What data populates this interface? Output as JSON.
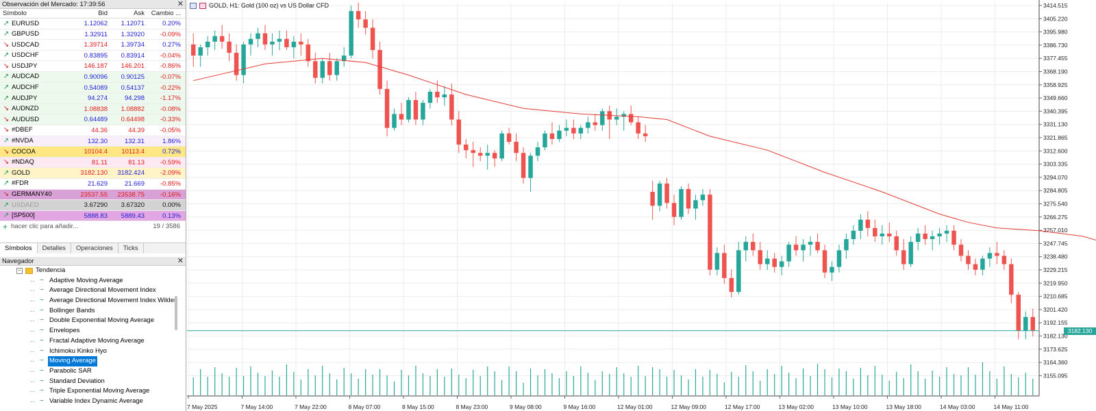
{
  "market_watch": {
    "title": "Observación del Mercado: 17:39:56",
    "columns": {
      "symbol": "Símbolo",
      "bid": "Bid",
      "ask": "Ask",
      "change": "Cambio ..."
    },
    "rows": [
      {
        "symbol": "EURUSD",
        "dir": "up",
        "bid": "1.12062",
        "ask": "1.12071",
        "change": "0.20%",
        "bid_color": "blue",
        "ask_color": "blue",
        "change_color": "blue",
        "bg": "#ffffff"
      },
      {
        "symbol": "GBPUSD",
        "dir": "up",
        "bid": "1.32911",
        "ask": "1.32920",
        "change": "-0.09%",
        "bid_color": "blue",
        "ask_color": "blue",
        "change_color": "red",
        "bg": "#ffffff"
      },
      {
        "symbol": "USDCAD",
        "dir": "down",
        "bid": "1.39714",
        "ask": "1.39734",
        "change": "0.27%",
        "bid_color": "red",
        "ask_color": "blue",
        "change_color": "blue",
        "bg": "#ffffff"
      },
      {
        "symbol": "USDCHF",
        "dir": "up",
        "bid": "0.83895",
        "ask": "0.83914",
        "change": "-0.04%",
        "bid_color": "blue",
        "ask_color": "blue",
        "change_color": "red",
        "bg": "#ffffff"
      },
      {
        "symbol": "USDJPY",
        "dir": "down",
        "bid": "146.187",
        "ask": "146.201",
        "change": "-0.86%",
        "bid_color": "red",
        "ask_color": "red",
        "change_color": "red",
        "bg": "#ffffff"
      },
      {
        "symbol": "AUDCAD",
        "dir": "up",
        "bid": "0.90096",
        "ask": "0.90125",
        "change": "-0.07%",
        "bid_color": "blue",
        "ask_color": "blue",
        "change_color": "red",
        "bg": "#eef9ee"
      },
      {
        "symbol": "AUDCHF",
        "dir": "up",
        "bid": "0.54089",
        "ask": "0.54137",
        "change": "-0.22%",
        "bid_color": "blue",
        "ask_color": "blue",
        "change_color": "red",
        "bg": "#eef9ee"
      },
      {
        "symbol": "AUDJPY",
        "dir": "up",
        "bid": "94.274",
        "ask": "94.298",
        "change": "-1.17%",
        "bid_color": "blue",
        "ask_color": "blue",
        "change_color": "red",
        "bg": "#eef9ee"
      },
      {
        "symbol": "AUDNZD",
        "dir": "down",
        "bid": "1.08838",
        "ask": "1.08882",
        "change": "-0.08%",
        "bid_color": "red",
        "ask_color": "red",
        "change_color": "red",
        "bg": "#eef9ee"
      },
      {
        "symbol": "AUDUSD",
        "dir": "down",
        "bid": "0.64489",
        "ask": "0.64498",
        "change": "-0.33%",
        "bid_color": "blue",
        "ask_color": "red",
        "change_color": "red",
        "bg": "#eef9ee"
      },
      {
        "symbol": "#DBEF",
        "dir": "down",
        "bid": "44.36",
        "ask": "44.39",
        "change": "-0.05%",
        "bid_color": "red",
        "ask_color": "red",
        "change_color": "red",
        "bg": "#ffffff"
      },
      {
        "symbol": "#NVDA",
        "dir": "up",
        "bid": "132.30",
        "ask": "132.31",
        "change": "1.86%",
        "bid_color": "blue",
        "ask_color": "blue",
        "change_color": "blue",
        "bg": "#f9effa"
      },
      {
        "symbol": "COCOA",
        "dir": "down",
        "bid": "10104.4",
        "ask": "10113.4",
        "change": "0.72%",
        "bid_color": "red",
        "ask_color": "red",
        "change_color": "blue",
        "bg": "#ffe884"
      },
      {
        "symbol": "#NDAQ",
        "dir": "down",
        "bid": "81.11",
        "ask": "81.13",
        "change": "-0.59%",
        "bid_color": "red",
        "ask_color": "red",
        "change_color": "red",
        "bg": "#fde9f2"
      },
      {
        "symbol": "GOLD",
        "dir": "up",
        "bid": "3182.130",
        "ask": "3182.424",
        "change": "-2.09%",
        "bid_color": "red",
        "ask_color": "blue",
        "change_color": "red",
        "bg": "#fff4c7"
      },
      {
        "symbol": "#FDR",
        "dir": "up",
        "bid": "21.629",
        "ask": "21.669",
        "change": "-0.85%",
        "bid_color": "blue",
        "ask_color": "blue",
        "change_color": "red",
        "bg": "#ffffff"
      },
      {
        "symbol": "GERMANY40",
        "dir": "down",
        "bid": "23537.55",
        "ask": "23538.75",
        "change": "-0.16%",
        "bid_color": "red",
        "ask_color": "red",
        "change_color": "red",
        "bg": "#d9a2d6"
      },
      {
        "symbol": "USDAED",
        "dir": "up",
        "bid": "3.67290",
        "ask": "3.67320",
        "change": "0.00%",
        "bid_color": "dark",
        "ask_color": "dark",
        "change_color": "dark",
        "bg": "#d3d3d3",
        "symbol_color": "grey"
      },
      {
        "symbol": "[SP500]",
        "dir": "up",
        "bid": "5888.83",
        "ask": "5889.43",
        "change": "0.13%",
        "bid_color": "blue",
        "ask_color": "blue",
        "change_color": "blue",
        "bg": "#e2a6e3"
      }
    ],
    "add_label": "hacer clic para añadir...",
    "count": "19 / 3586",
    "tabs": [
      "Símbolos",
      "Detalles",
      "Operaciones",
      "Ticks"
    ]
  },
  "navigator": {
    "title": "Navegador",
    "folder": "Tendencia",
    "items": [
      "Adaptive Moving Average",
      "Average Directional Movement Index",
      "Average Directional Movement Index Wilder",
      "Bollinger Bands",
      "Double Exponential Moving Average",
      "Envelopes",
      "Fractal Adaptive Moving Average",
      "Ichimoku Kinko Hyo",
      "Moving Average",
      "Parabolic SAR",
      "Standard Deviation",
      "Triple Exponential Moving Average",
      "Variable Index Dynamic Average"
    ],
    "selected": "Moving Average"
  },
  "chart": {
    "caption": "GOLD, H1:  Gold (100 oz) vs US Dollar CFD",
    "current_price_label": "3182.130",
    "colors": {
      "bull": "#26a69a",
      "bear": "#ef5350",
      "ma": "#e53935",
      "grid": "#ececec",
      "volume": "#26a69a"
    }
  },
  "chart_data": {
    "type": "candlestick",
    "title": "GOLD, H1:  Gold (100 oz) vs US Dollar CFD",
    "y_ticks": [
      "3414.515",
      "3405.220",
      "3395.980",
      "3386.730",
      "3377.455",
      "3368.190",
      "3358.925",
      "3349.660",
      "3340.395",
      "3331.130",
      "3321.865",
      "3312.600",
      "3303.335",
      "3294.070",
      "3284.805",
      "3275.540",
      "3266.275",
      "3257.010",
      "3247.745",
      "3238.480",
      "3229.215",
      "3219.950",
      "3210.685",
      "3201.420",
      "3192.155",
      "3182.130",
      "3173.625",
      "3164.360",
      "3155.095"
    ],
    "y_range": [
      3150,
      3418
    ],
    "x_ticks": [
      "7 May 2025",
      "7 May 14:00",
      "7 May 22:00",
      "8 May 07:00",
      "8 May 15:00",
      "8 May 23:00",
      "9 May 08:00",
      "9 May 16:00",
      "12 May 01:00",
      "12 May 09:00",
      "12 May 17:00",
      "13 May 02:00",
      "13 May 10:00",
      "13 May 18:00",
      "14 May 03:00",
      "14 May 11:00"
    ],
    "current_price": 3182.13,
    "candles": [
      [
        3388,
        3396,
        3372,
        3380
      ],
      [
        3380,
        3388,
        3372,
        3386
      ],
      [
        3386,
        3394,
        3380,
        3390
      ],
      [
        3390,
        3398,
        3384,
        3394
      ],
      [
        3394,
        3402,
        3385,
        3390
      ],
      [
        3390,
        3396,
        3376,
        3382
      ],
      [
        3382,
        3388,
        3362,
        3366
      ],
      [
        3366,
        3390,
        3360,
        3388
      ],
      [
        3388,
        3396,
        3380,
        3392
      ],
      [
        3392,
        3400,
        3386,
        3396
      ],
      [
        3396,
        3402,
        3384,
        3388
      ],
      [
        3388,
        3396,
        3380,
        3390
      ],
      [
        3390,
        3398,
        3384,
        3392
      ],
      [
        3392,
        3398,
        3384,
        3386
      ],
      [
        3386,
        3394,
        3378,
        3390
      ],
      [
        3390,
        3396,
        3380,
        3388
      ],
      [
        3388,
        3392,
        3372,
        3376
      ],
      [
        3376,
        3382,
        3360,
        3364
      ],
      [
        3364,
        3378,
        3360,
        3376
      ],
      [
        3376,
        3382,
        3362,
        3366
      ],
      [
        3366,
        3378,
        3362,
        3376
      ],
      [
        3376,
        3386,
        3372,
        3380
      ],
      [
        3380,
        3416,
        3378,
        3412
      ],
      [
        3412,
        3418,
        3400,
        3406
      ],
      [
        3406,
        3412,
        3395,
        3400
      ],
      [
        3400,
        3406,
        3378,
        3384
      ],
      [
        3384,
        3390,
        3352,
        3356
      ],
      [
        3356,
        3362,
        3322,
        3328
      ],
      [
        3328,
        3342,
        3326,
        3338
      ],
      [
        3338,
        3346,
        3330,
        3334
      ],
      [
        3334,
        3350,
        3332,
        3348
      ],
      [
        3348,
        3354,
        3330,
        3334
      ],
      [
        3334,
        3348,
        3330,
        3346
      ],
      [
        3346,
        3356,
        3342,
        3354
      ],
      [
        3354,
        3362,
        3346,
        3350
      ],
      [
        3350,
        3358,
        3344,
        3352
      ],
      [
        3352,
        3360,
        3330,
        3334
      ],
      [
        3334,
        3340,
        3310,
        3316
      ],
      [
        3316,
        3320,
        3306,
        3312
      ],
      [
        3312,
        3318,
        3300,
        3310
      ],
      [
        3310,
        3314,
        3304,
        3308
      ],
      [
        3308,
        3316,
        3298,
        3310
      ],
      [
        3310,
        3312,
        3300,
        3306
      ],
      [
        3306,
        3326,
        3304,
        3324
      ],
      [
        3324,
        3328,
        3316,
        3318
      ],
      [
        3318,
        3324,
        3304,
        3310
      ],
      [
        3310,
        3314,
        3288,
        3292
      ],
      [
        3292,
        3310,
        3282,
        3308
      ],
      [
        3308,
        3318,
        3304,
        3314
      ],
      [
        3314,
        3326,
        3312,
        3324
      ],
      [
        3324,
        3332,
        3316,
        3320
      ],
      [
        3320,
        3330,
        3318,
        3326
      ],
      [
        3326,
        3334,
        3322,
        3328
      ],
      [
        3328,
        3334,
        3320,
        3324
      ],
      [
        3324,
        3330,
        3320,
        3328
      ],
      [
        3328,
        3336,
        3324,
        3332
      ],
      [
        3332,
        3338,
        3326,
        3330
      ],
      [
        3330,
        3342,
        3326,
        3340
      ],
      [
        3340,
        3344,
        3320,
        3334
      ],
      [
        3334,
        3342,
        3330,
        3336
      ],
      [
        3336,
        3340,
        3326,
        3338
      ],
      [
        3338,
        3344,
        3330,
        3332
      ],
      [
        3332,
        3336,
        3320,
        3324
      ],
      [
        3324,
        3330,
        3318,
        3322
      ],
      [
        3282,
        3290,
        3262,
        3272
      ],
      [
        3272,
        3290,
        3268,
        3288
      ],
      [
        3288,
        3292,
        3270,
        3274
      ],
      [
        3274,
        3280,
        3258,
        3264
      ],
      [
        3264,
        3286,
        3262,
        3284
      ],
      [
        3284,
        3288,
        3266,
        3270
      ],
      [
        3270,
        3280,
        3262,
        3276
      ],
      [
        3276,
        3284,
        3272,
        3280
      ],
      [
        3280,
        3284,
        3222,
        3226
      ],
      [
        3226,
        3242,
        3222,
        3238
      ],
      [
        3238,
        3244,
        3216,
        3220
      ],
      [
        3220,
        3226,
        3206,
        3210
      ],
      [
        3210,
        3246,
        3208,
        3240
      ],
      [
        3240,
        3250,
        3232,
        3246
      ],
      [
        3246,
        3252,
        3236,
        3240
      ],
      [
        3240,
        3246,
        3226,
        3230
      ],
      [
        3230,
        3240,
        3226,
        3234
      ],
      [
        3234,
        3238,
        3224,
        3228
      ],
      [
        3228,
        3236,
        3222,
        3232
      ],
      [
        3232,
        3246,
        3228,
        3244
      ],
      [
        3244,
        3250,
        3236,
        3240
      ],
      [
        3240,
        3248,
        3232,
        3244
      ],
      [
        3244,
        3250,
        3236,
        3246
      ],
      [
        3246,
        3252,
        3238,
        3240
      ],
      [
        3240,
        3244,
        3220,
        3224
      ],
      [
        3224,
        3232,
        3218,
        3228
      ],
      [
        3228,
        3244,
        3224,
        3240
      ],
      [
        3240,
        3252,
        3234,
        3248
      ],
      [
        3248,
        3258,
        3244,
        3254
      ],
      [
        3254,
        3266,
        3248,
        3262
      ],
      [
        3262,
        3268,
        3250,
        3256
      ],
      [
        3256,
        3262,
        3246,
        3250
      ],
      [
        3250,
        3258,
        3244,
        3252
      ],
      [
        3252,
        3260,
        3246,
        3250
      ],
      [
        3250,
        3254,
        3236,
        3240
      ],
      [
        3240,
        3248,
        3226,
        3230
      ],
      [
        3230,
        3250,
        3228,
        3246
      ],
      [
        3246,
        3256,
        3240,
        3252
      ],
      [
        3252,
        3258,
        3244,
        3248
      ],
      [
        3248,
        3254,
        3240,
        3250
      ],
      [
        3250,
        3256,
        3244,
        3252
      ],
      [
        3252,
        3258,
        3246,
        3254
      ],
      [
        3254,
        3258,
        3240,
        3244
      ],
      [
        3244,
        3248,
        3232,
        3236
      ],
      [
        3236,
        3240,
        3226,
        3230
      ],
      [
        3230,
        3234,
        3222,
        3226
      ],
      [
        3226,
        3236,
        3222,
        3234
      ],
      [
        3234,
        3242,
        3228,
        3238
      ],
      [
        3238,
        3246,
        3230,
        3236
      ],
      [
        3236,
        3240,
        3226,
        3230
      ],
      [
        3230,
        3234,
        3202,
        3208
      ],
      [
        3208,
        3210,
        3176,
        3182
      ],
      [
        3182,
        3196,
        3176,
        3192
      ],
      [
        3192,
        3198,
        3178,
        3182
      ]
    ],
    "ma_points": [
      [
        0,
        3362
      ],
      [
        10,
        3374
      ],
      [
        18,
        3378
      ],
      [
        24,
        3375
      ],
      [
        30,
        3366
      ],
      [
        38,
        3352
      ],
      [
        46,
        3342
      ],
      [
        54,
        3338
      ],
      [
        62,
        3336
      ],
      [
        66,
        3334
      ],
      [
        72,
        3322
      ],
      [
        80,
        3312
      ],
      [
        88,
        3296
      ],
      [
        96,
        3282
      ],
      [
        104,
        3266
      ],
      [
        108,
        3260
      ],
      [
        112,
        3256
      ],
      [
        118,
        3254
      ],
      [
        124,
        3250
      ],
      [
        128,
        3244
      ],
      [
        129,
        3238
      ]
    ]
  }
}
